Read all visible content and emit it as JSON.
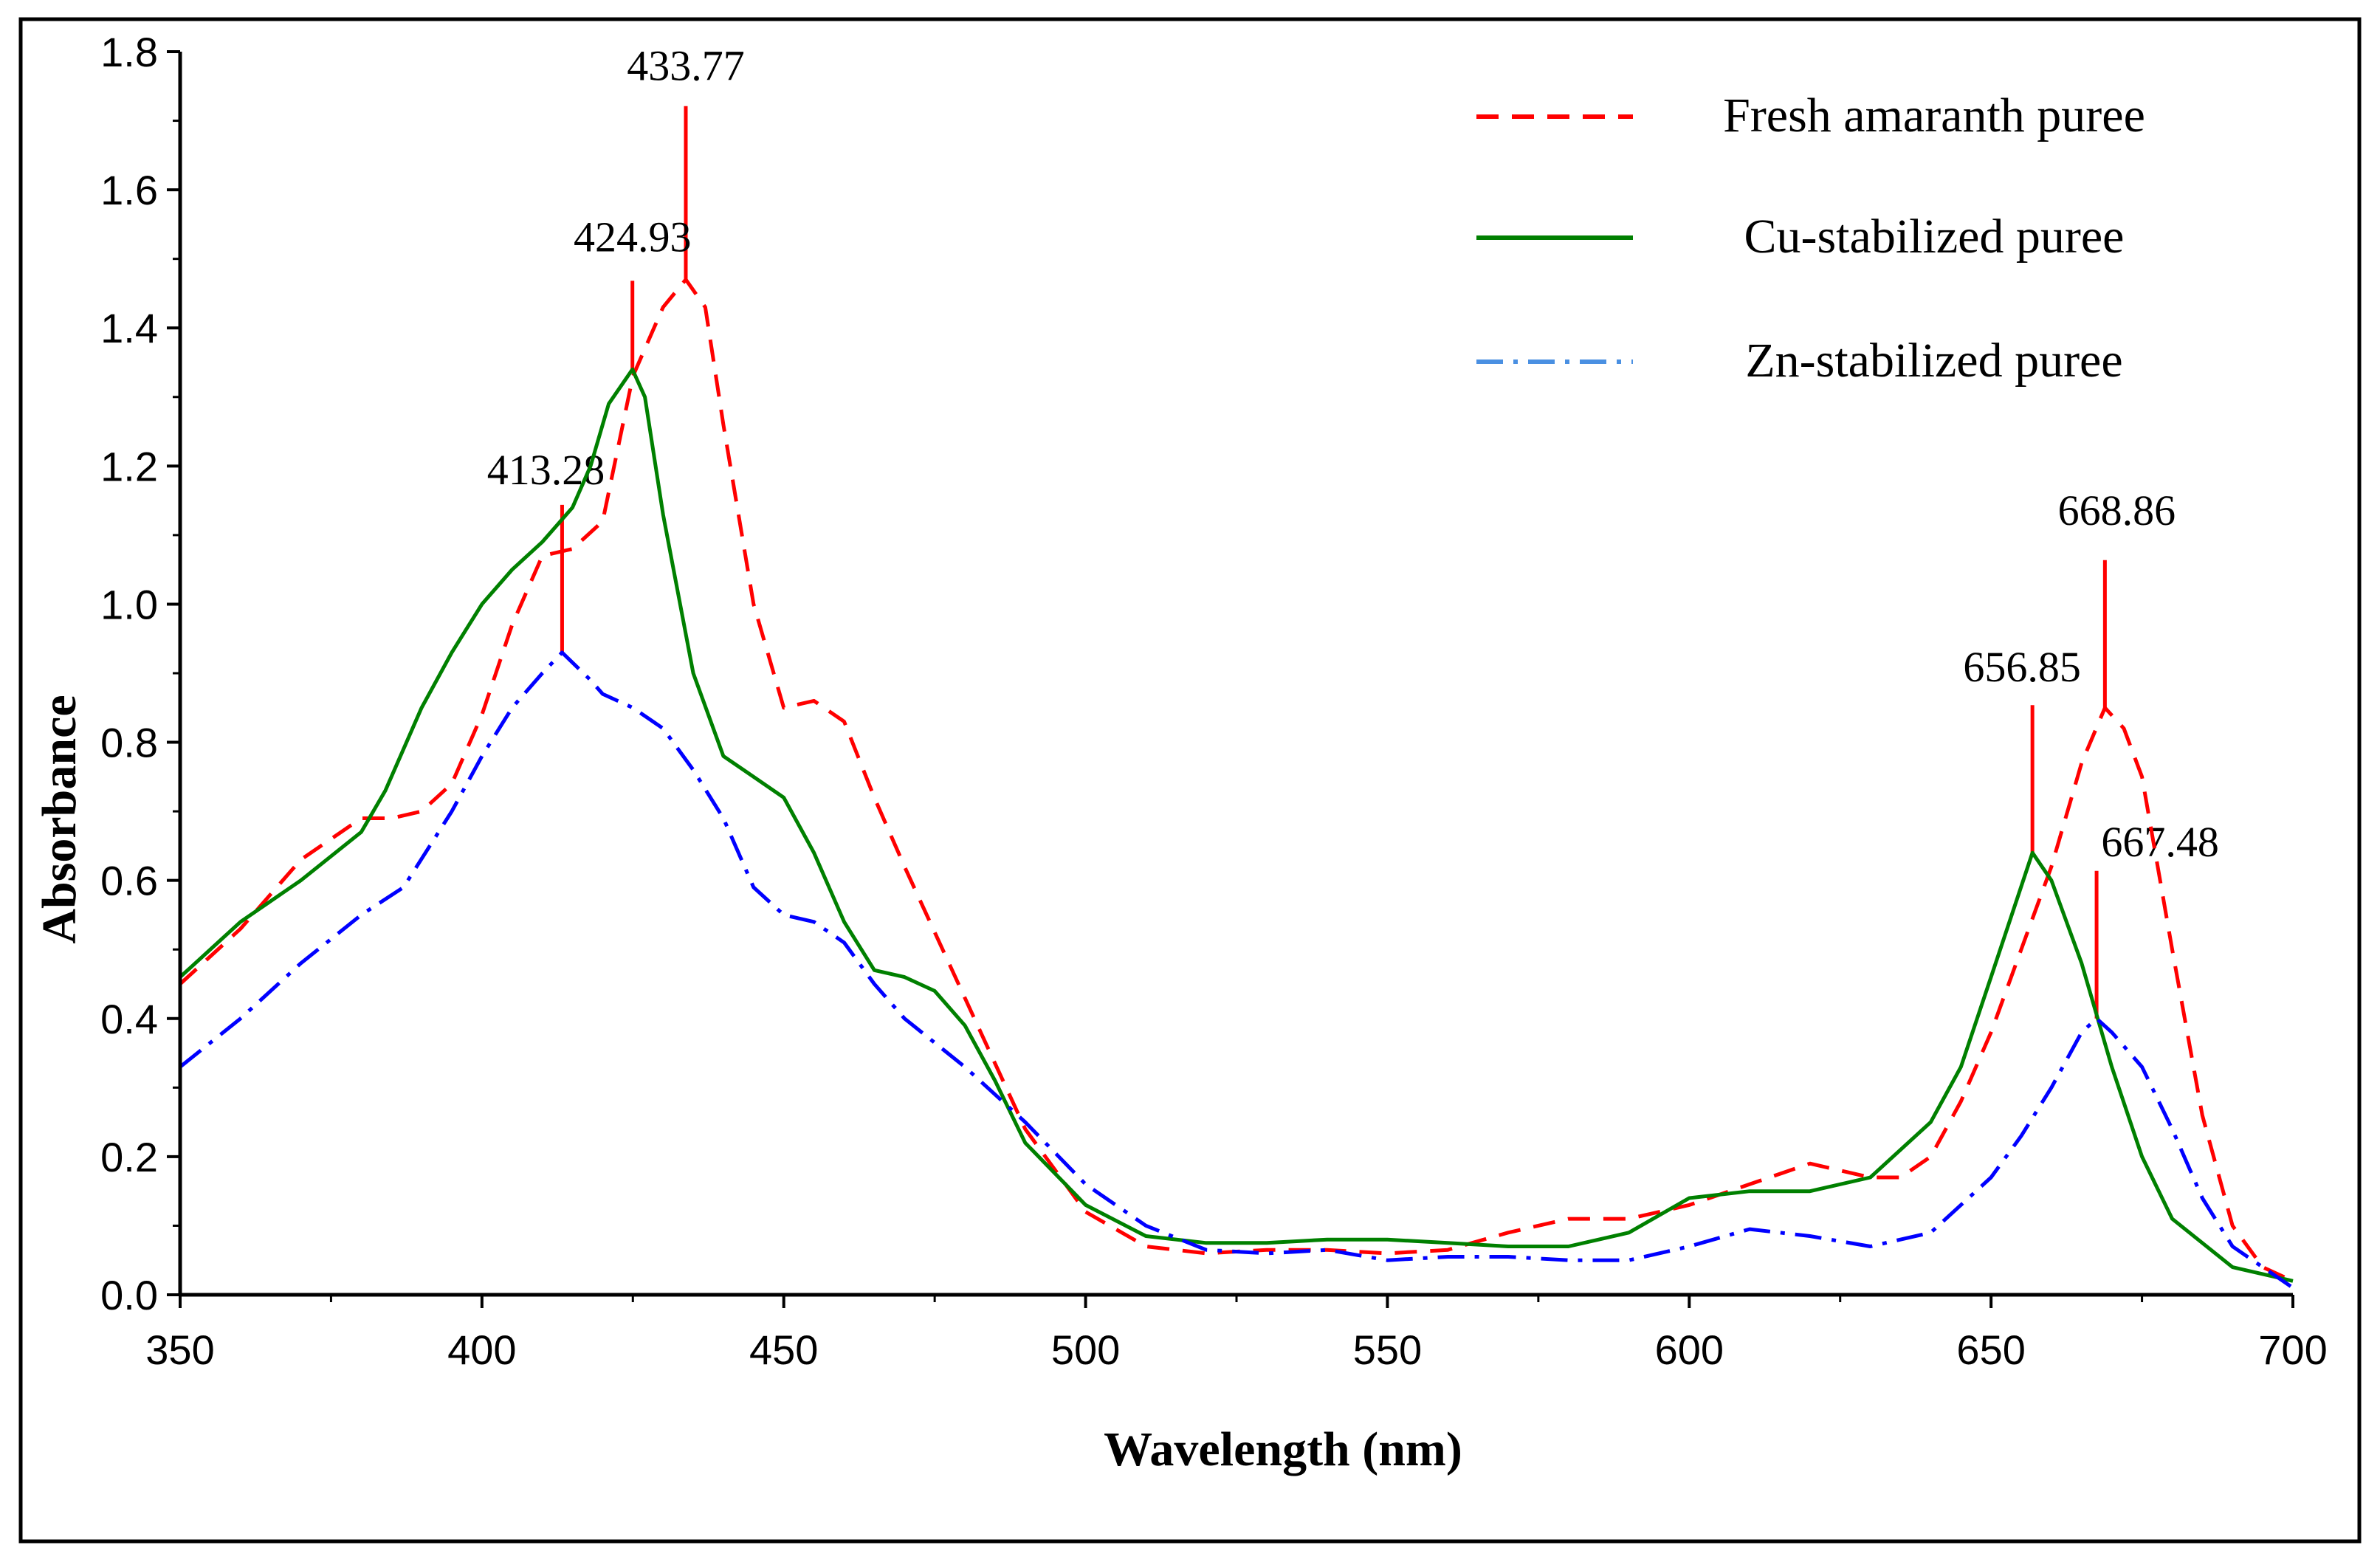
{
  "chart_data": {
    "type": "line",
    "title": "",
    "xlabel": "Wavelength (nm)",
    "ylabel": "Absorbance",
    "xlim": [
      350,
      700
    ],
    "ylim": [
      0.0,
      1.8
    ],
    "xticks": [
      "350",
      "400",
      "450",
      "500",
      "550",
      "600",
      "650",
      "700"
    ],
    "yticks": [
      "0.0",
      "0.2",
      "0.4",
      "0.6",
      "0.8",
      "1.0",
      "1.2",
      "1.4",
      "1.6",
      "1.8"
    ],
    "legend_position": "top-right",
    "grid": false,
    "series": [
      {
        "name": "Fresh amaranth puree",
        "color": "#ff0000",
        "style": "dashed",
        "x": [
          350,
          360,
          370,
          380,
          385,
          390,
          395,
          400,
          405,
          410,
          415,
          420,
          425,
          430,
          433.77,
          437,
          440,
          445,
          450,
          455,
          460,
          465,
          470,
          480,
          490,
          500,
          510,
          520,
          530,
          540,
          550,
          560,
          570,
          580,
          590,
          600,
          610,
          620,
          630,
          635,
          640,
          645,
          650,
          655,
          660,
          665,
          668.86,
          672,
          675,
          680,
          685,
          690,
          695,
          700
        ],
        "y": [
          0.45,
          0.53,
          0.63,
          0.69,
          0.69,
          0.7,
          0.74,
          0.84,
          0.97,
          1.07,
          1.08,
          1.12,
          1.33,
          1.43,
          1.47,
          1.43,
          1.26,
          1.0,
          0.85,
          0.86,
          0.83,
          0.72,
          0.62,
          0.43,
          0.24,
          0.12,
          0.07,
          0.06,
          0.065,
          0.065,
          0.06,
          0.065,
          0.09,
          0.11,
          0.11,
          0.13,
          0.16,
          0.19,
          0.17,
          0.17,
          0.2,
          0.28,
          0.38,
          0.5,
          0.62,
          0.77,
          0.85,
          0.82,
          0.75,
          0.5,
          0.26,
          0.1,
          0.04,
          0.02
        ]
      },
      {
        "name": "Cu-stabilized puree",
        "color": "#008000",
        "style": "solid",
        "x": [
          350,
          360,
          370,
          380,
          384,
          390,
          395,
          400,
          405,
          410,
          415,
          418,
          421,
          424.93,
          427,
          430,
          435,
          440,
          445,
          450,
          455,
          460,
          465,
          470,
          475,
          480,
          485,
          490,
          500,
          510,
          520,
          530,
          540,
          550,
          560,
          570,
          580,
          590,
          600,
          610,
          620,
          630,
          640,
          645,
          650,
          656.85,
          660,
          665,
          670,
          675,
          680,
          690,
          700
        ],
        "y": [
          0.46,
          0.54,
          0.6,
          0.67,
          0.73,
          0.85,
          0.93,
          1.0,
          1.05,
          1.09,
          1.14,
          1.2,
          1.29,
          1.34,
          1.3,
          1.13,
          0.9,
          0.78,
          0.75,
          0.72,
          0.64,
          0.54,
          0.47,
          0.46,
          0.44,
          0.39,
          0.31,
          0.22,
          0.13,
          0.085,
          0.075,
          0.075,
          0.08,
          0.08,
          0.075,
          0.07,
          0.07,
          0.09,
          0.14,
          0.15,
          0.15,
          0.17,
          0.25,
          0.33,
          0.46,
          0.64,
          0.6,
          0.48,
          0.33,
          0.2,
          0.11,
          0.04,
          0.02
        ]
      },
      {
        "name": "Zn-stabilized puree",
        "color": "#0000ff",
        "style": "dashdot",
        "x": [
          350,
          360,
          370,
          380,
          387,
          395,
          400,
          405,
          410,
          413.28,
          418,
          420,
          425,
          430,
          435,
          440,
          445,
          450,
          455,
          460,
          465,
          470,
          480,
          490,
          500,
          510,
          520,
          530,
          540,
          550,
          560,
          570,
          580,
          590,
          600,
          610,
          620,
          630,
          640,
          650,
          655,
          660,
          665,
          667.48,
          670,
          675,
          680,
          685,
          690,
          700
        ],
        "y": [
          0.33,
          0.4,
          0.48,
          0.55,
          0.59,
          0.7,
          0.78,
          0.85,
          0.9,
          0.93,
          0.89,
          0.87,
          0.85,
          0.82,
          0.76,
          0.69,
          0.59,
          0.55,
          0.54,
          0.51,
          0.45,
          0.4,
          0.33,
          0.25,
          0.16,
          0.1,
          0.065,
          0.06,
          0.065,
          0.05,
          0.055,
          0.055,
          0.05,
          0.05,
          0.07,
          0.095,
          0.085,
          0.07,
          0.09,
          0.17,
          0.23,
          0.3,
          0.38,
          0.4,
          0.38,
          0.33,
          0.24,
          0.14,
          0.07,
          0.01
        ]
      }
    ],
    "annotations": [
      {
        "label": "433.77",
        "x": 433.77,
        "y": 1.47
      },
      {
        "label": "424.93",
        "x": 424.93,
        "y": 1.34
      },
      {
        "label": "413.28",
        "x": 413.28,
        "y": 0.93
      },
      {
        "label": "656.85",
        "x": 656.85,
        "y": 0.64
      },
      {
        "label": "668.86",
        "x": 668.86,
        "y": 0.85
      },
      {
        "label": "667.48",
        "x": 667.48,
        "y": 0.4
      }
    ],
    "annotation_color": "#ff0000"
  }
}
